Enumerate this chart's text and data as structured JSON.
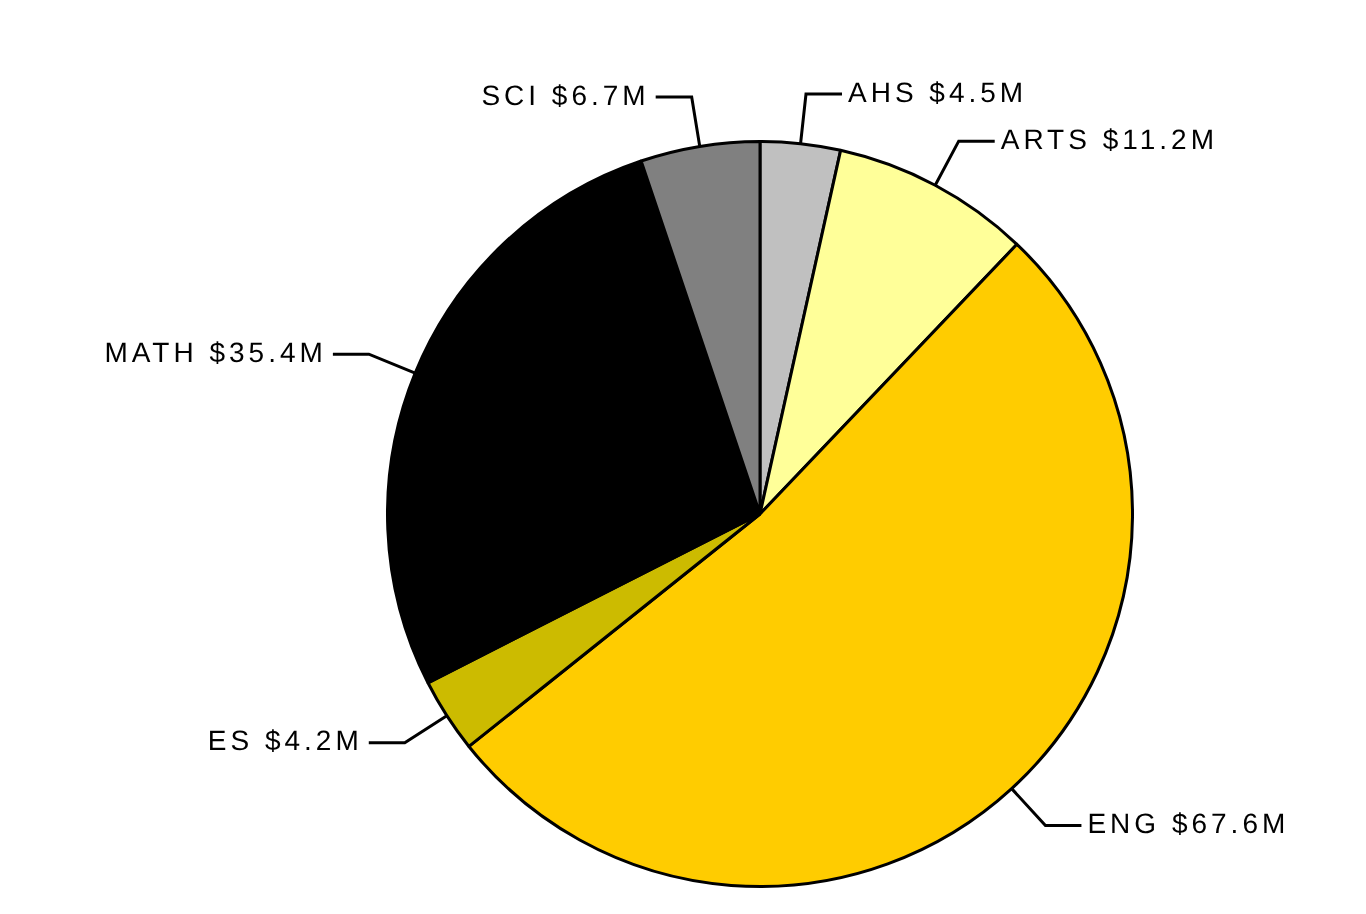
{
  "chart_data": {
    "type": "pie",
    "categories": [
      "AHS",
      "ARTS",
      "ENG",
      "ES",
      "MATH",
      "SCI"
    ],
    "values": [
      4.5,
      11.2,
      67.6,
      4.2,
      35.4,
      6.7
    ],
    "colors": [
      "#c0c0c0",
      "#ffff99",
      "#ffcc00",
      "#ccbb00",
      "#000000",
      "#808080"
    ],
    "value_labels": [
      "$4.5M",
      "$11.2M",
      "$67.6M",
      "$4.2M",
      "$35.4M",
      "$6.7M"
    ],
    "legend": false
  }
}
